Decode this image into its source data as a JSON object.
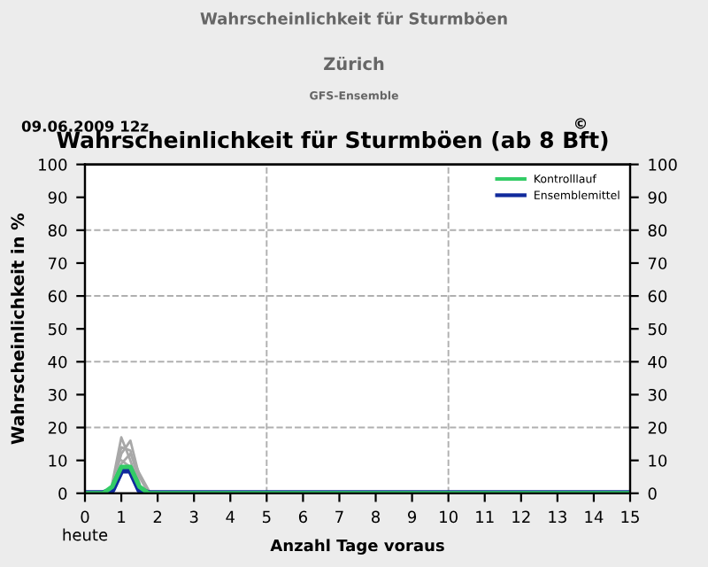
{
  "chart_data": {
    "type": "line",
    "title": "Wahrscheinlichkeit für Sturmböen",
    "subtitle": "Zürich",
    "annotations": [
      "GFS-Ensemble",
      "09.06.2009 12z",
      "Wahrscheinlichkeit für Sturmböen (ab 8 Bft)",
      "©"
    ],
    "xlabel": "Anzahl Tage voraus",
    "ylabel": "Wahrscheinlichkeit in %",
    "x": [
      0,
      0.5,
      0.75,
      1,
      1.25,
      1.5,
      1.75,
      2,
      15
    ],
    "series": [
      {
        "color": "#a8a8a8",
        "x": [
          0.75,
          1,
          1.25,
          1.5
        ],
        "values": [
          3,
          17,
          10,
          2
        ]
      },
      {
        "color": "#a8a8a8",
        "x": [
          0.75,
          1,
          1.25,
          1.5,
          1.75
        ],
        "values": [
          2,
          12,
          16,
          5,
          0
        ]
      },
      {
        "color": "#a8a8a8",
        "x": [
          0.75,
          1,
          1.25,
          1.5
        ],
        "values": [
          1,
          14,
          13,
          3
        ]
      },
      {
        "color": "#a8a8a8",
        "x": [
          0.75,
          1,
          1.25,
          1.5,
          1.75
        ],
        "values": [
          1,
          9,
          12,
          6,
          1
        ]
      },
      {
        "color": "#a8a8a8",
        "x": [
          1,
          1.25,
          1.5
        ],
        "values": [
          10,
          8,
          1
        ]
      },
      {
        "name": "Kontrolllauf",
        "color": "#33cc66",
        "values": [
          0,
          0,
          2,
          8,
          8,
          2,
          0,
          0,
          0
        ]
      },
      {
        "name": "Ensemblemittel",
        "color": "#102a9c",
        "values": [
          0,
          0,
          1,
          7,
          7,
          1,
          0,
          0,
          0
        ]
      }
    ],
    "xlim": [
      0,
      15
    ],
    "xticks": [
      {
        "value": 0,
        "label": "0\nheute"
      },
      1,
      2,
      3,
      4,
      5,
      6,
      7,
      8,
      9,
      10,
      11,
      12,
      13,
      14,
      15
    ],
    "ylim": [
      0,
      100
    ],
    "yticks": [
      0,
      10,
      20,
      30,
      40,
      50,
      60,
      70,
      80,
      90,
      100
    ],
    "y2lim": [
      0,
      100
    ],
    "y2ticks": [
      0,
      10,
      20,
      30,
      40,
      50,
      60,
      70,
      80,
      90,
      100
    ],
    "ref_lines": [
      {
        "axis": "x",
        "value": 5,
        "color": "#b0b0b0",
        "line_style": "dashed"
      },
      {
        "axis": "x",
        "value": 10,
        "color": "#b0b0b0",
        "line_style": "dashed"
      },
      {
        "axis": "y",
        "value": 20,
        "color": "#b0b0b0",
        "line_style": "dashed"
      },
      {
        "axis": "y",
        "value": 40,
        "color": "#b0b0b0",
        "line_style": "dashed"
      },
      {
        "axis": "y",
        "value": 60,
        "color": "#b0b0b0",
        "line_style": "dashed"
      },
      {
        "axis": "y",
        "value": 80,
        "color": "#b0b0b0",
        "line_style": "dashed"
      }
    ],
    "legend": "top right",
    "grid": false
  }
}
